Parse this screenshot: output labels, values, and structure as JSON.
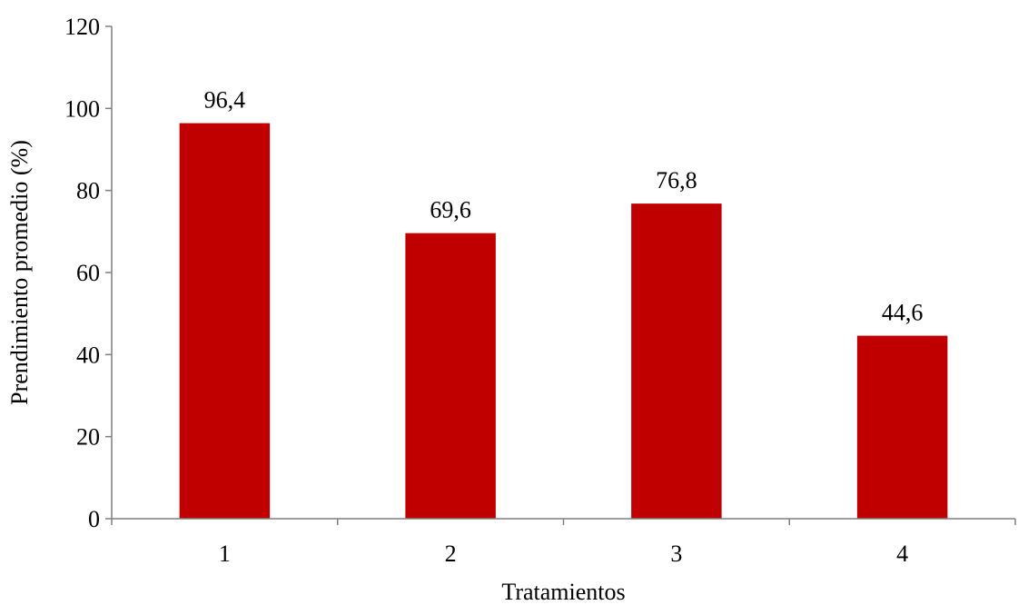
{
  "chart_data": {
    "type": "bar",
    "categories": [
      "1",
      "2",
      "3",
      "4"
    ],
    "values": [
      96.4,
      69.6,
      76.8,
      44.6
    ],
    "data_labels": [
      "96,4",
      "69,6",
      "76,8",
      "44,6"
    ],
    "title": "",
    "xlabel": "Tratamientos",
    "ylabel": "Prendimiento promedio (%)",
    "ylim": [
      0,
      120
    ],
    "yticks": [
      0,
      20,
      40,
      60,
      80,
      100,
      120
    ],
    "ytick_labels": [
      "0",
      "20",
      "40",
      "60",
      "80",
      "100",
      "120"
    ],
    "grid": false,
    "legend": "none",
    "bar_color": "#c00000",
    "axis_color": "#7f7f7f"
  }
}
